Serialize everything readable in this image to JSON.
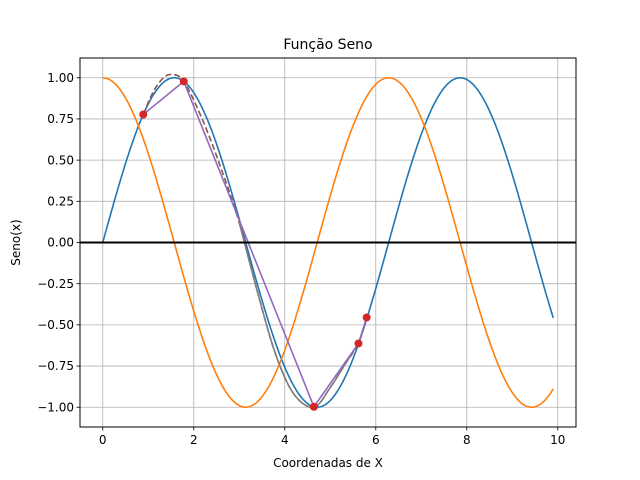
{
  "chart_data": {
    "type": "line",
    "title": "Função Seno",
    "xlabel": "Coordenadas de X",
    "ylabel": "Seno(x)",
    "xlim": [
      -0.5,
      10.4
    ],
    "ylim": [
      -1.12,
      1.12
    ],
    "grid": true,
    "x_ticks": [
      0,
      2,
      4,
      6,
      8,
      10
    ],
    "x_tick_labels": [
      "0",
      "2",
      "4",
      "6",
      "8",
      "10"
    ],
    "y_ticks": [
      -1.0,
      -0.75,
      -0.5,
      -0.25,
      0.0,
      0.25,
      0.5,
      0.75,
      1.0
    ],
    "y_tick_labels": [
      "−1.00",
      "−0.75",
      "−0.50",
      "−0.25",
      "0.00",
      "0.25",
      "0.50",
      "0.75",
      "1.00"
    ],
    "series": [
      {
        "kind": "function",
        "func": "sin",
        "color": "#1f77b4",
        "x": [
          0.0,
          0.3,
          0.6,
          0.9,
          1.2,
          1.5,
          1.8,
          2.1,
          2.4,
          2.7,
          3.0,
          3.3,
          3.6,
          3.9,
          4.2,
          4.5,
          4.8,
          5.1,
          5.4,
          5.7,
          6.0,
          6.3,
          6.6,
          6.9,
          7.2,
          7.5,
          7.8,
          8.1,
          8.4,
          8.7,
          9.0,
          9.3,
          9.6,
          9.9
        ],
        "y": [
          0.0,
          0.296,
          0.565,
          0.783,
          0.932,
          0.997,
          0.974,
          0.863,
          0.675,
          0.427,
          0.141,
          -0.158,
          -0.443,
          -0.688,
          -0.872,
          -0.978,
          -0.996,
          -0.926,
          -0.773,
          -0.551,
          -0.279,
          0.017,
          0.312,
          0.578,
          0.794,
          0.938,
          0.999,
          0.97,
          0.855,
          0.663,
          0.412,
          0.125,
          -0.174,
          -0.458
        ]
      },
      {
        "kind": "function",
        "func": "cos",
        "color": "#ff7f0e",
        "x": [
          0.0,
          0.3,
          0.6,
          0.9,
          1.2,
          1.5,
          1.8,
          2.1,
          2.4,
          2.7,
          3.0,
          3.3,
          3.6,
          3.9,
          4.2,
          4.5,
          4.8,
          5.1,
          5.4,
          5.7,
          6.0,
          6.3,
          6.6,
          6.9,
          7.2,
          7.5,
          7.8,
          8.1,
          8.4,
          8.7,
          9.0,
          9.3,
          9.6,
          9.9
        ],
        "y": [
          1.0,
          0.955,
          0.825,
          0.622,
          0.362,
          0.071,
          -0.227,
          -0.505,
          -0.737,
          -0.904,
          -0.99,
          -0.987,
          -0.897,
          -0.726,
          -0.49,
          -0.211,
          0.087,
          0.378,
          0.635,
          0.835,
          0.96,
          1.0,
          0.95,
          0.815,
          0.608,
          0.347,
          0.054,
          -0.243,
          -0.519,
          -0.748,
          -0.911,
          -0.992,
          -0.985,
          -0.889
        ]
      },
      {
        "kind": "smooth",
        "dashed": true,
        "color": "#8c564b",
        "x": [
          0.89,
          1.1,
          1.3,
          1.5,
          1.78,
          2.2,
          2.6,
          3.0,
          3.4,
          3.8,
          4.2,
          4.64,
          5.0,
          5.3,
          5.62,
          5.8
        ],
        "y": [
          0.777,
          0.91,
          0.99,
          1.02,
          0.978,
          0.74,
          0.45,
          0.12,
          -0.3,
          -0.68,
          -0.92,
          -1.0,
          -0.88,
          -0.75,
          -0.61,
          -0.45
        ]
      },
      {
        "kind": "smooth",
        "dashed": false,
        "color": "#7f7f7f",
        "x": [
          3.0,
          3.4,
          3.8,
          4.2,
          4.64,
          5.0,
          5.3,
          5.62
        ],
        "y": [
          0.12,
          -0.3,
          -0.68,
          -0.92,
          -1.0,
          -0.88,
          -0.75,
          -0.61
        ]
      },
      {
        "kind": "points",
        "color": "#d62728",
        "line_color": "#9467bd",
        "x": [
          0.89,
          1.78,
          4.64,
          5.62,
          5.8
        ],
        "y": [
          0.777,
          0.978,
          -0.997,
          -0.613,
          -0.455
        ]
      }
    ],
    "hline": {
      "y": 0,
      "color": "#000000"
    }
  }
}
